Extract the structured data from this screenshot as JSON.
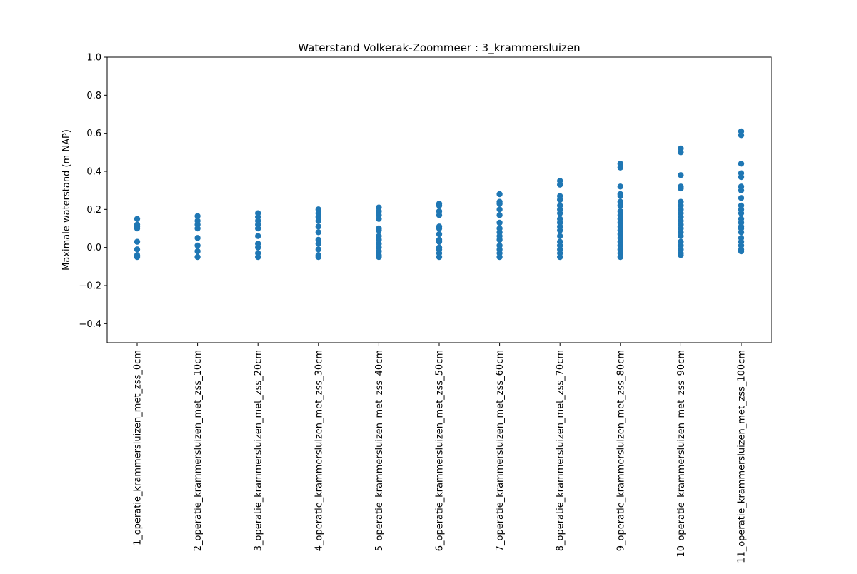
{
  "chart_data": {
    "type": "scatter",
    "title": "Waterstand Volkerak-Zoommeer : 3_krammersluizen",
    "xlabel": "",
    "ylabel": "Maximale waterstand (m NAP)",
    "ylim": [
      -0.5,
      1.0
    ],
    "yticks": [
      "−0.4",
      "−0.2",
      "0.0",
      "0.2",
      "0.4",
      "0.6",
      "0.8",
      "1.0"
    ],
    "ytick_values": [
      -0.4,
      -0.2,
      0.0,
      0.2,
      0.4,
      0.6,
      0.8,
      1.0
    ],
    "grid": false,
    "marker_color": "#1f77b4",
    "categories": [
      "1_operatie_krammersluizen_met_zss_0cm",
      "2_operatie_krammersluizen_met_zss_10cm",
      "3_operatie_krammersluizen_met_zss_20cm",
      "4_operatie_krammersluizen_met_zss_30cm",
      "5_operatie_krammersluizen_met_zss_40cm",
      "6_operatie_krammersluizen_met_zss_50cm",
      "7_operatie_krammersluizen_met_zss_60cm",
      "8_operatie_krammersluizen_met_zss_70cm",
      "9_operatie_krammersluizen_met_zss_80cm",
      "10_operatie_krammersluizen_met_zss_90cm",
      "11_operatie_krammersluizen_met_zss_100cm"
    ],
    "values": [
      [
        0.15,
        0.12,
        0.11,
        0.1,
        0.03,
        -0.01,
        -0.04,
        -0.05
      ],
      [
        0.165,
        0.14,
        0.12,
        0.1,
        0.05,
        0.01,
        -0.02,
        -0.05
      ],
      [
        0.18,
        0.16,
        0.14,
        0.12,
        0.1,
        0.06,
        0.02,
        0.0,
        -0.03,
        -0.05
      ],
      [
        0.2,
        0.18,
        0.16,
        0.14,
        0.11,
        0.08,
        0.04,
        0.02,
        -0.01,
        -0.04,
        -0.05
      ],
      [
        0.21,
        0.19,
        0.17,
        0.15,
        0.1,
        0.09,
        0.06,
        0.04,
        0.02,
        0.0,
        -0.02,
        -0.04,
        -0.05
      ],
      [
        0.23,
        0.22,
        0.19,
        0.17,
        0.11,
        0.1,
        0.07,
        0.04,
        0.03,
        0.0,
        -0.01,
        -0.03,
        -0.05
      ],
      [
        0.28,
        0.24,
        0.23,
        0.2,
        0.17,
        0.13,
        0.1,
        0.08,
        0.06,
        0.04,
        0.01,
        -0.01,
        -0.03,
        -0.05
      ],
      [
        0.35,
        0.33,
        0.27,
        0.25,
        0.22,
        0.2,
        0.18,
        0.15,
        0.13,
        0.11,
        0.09,
        0.06,
        0.03,
        0.01,
        -0.01,
        -0.03,
        -0.05
      ],
      [
        0.44,
        0.42,
        0.32,
        0.28,
        0.27,
        0.24,
        0.22,
        0.19,
        0.17,
        0.15,
        0.13,
        0.11,
        0.09,
        0.07,
        0.05,
        0.03,
        0.01,
        -0.01,
        -0.03,
        -0.05
      ],
      [
        0.52,
        0.5,
        0.38,
        0.32,
        0.31,
        0.24,
        0.22,
        0.2,
        0.18,
        0.16,
        0.14,
        0.12,
        0.1,
        0.08,
        0.06,
        0.03,
        0.01,
        -0.01,
        -0.03,
        -0.04
      ],
      [
        0.61,
        0.59,
        0.44,
        0.39,
        0.37,
        0.32,
        0.3,
        0.26,
        0.22,
        0.2,
        0.18,
        0.15,
        0.13,
        0.11,
        0.1,
        0.08,
        0.05,
        0.03,
        0.01,
        -0.01,
        -0.02
      ]
    ]
  }
}
